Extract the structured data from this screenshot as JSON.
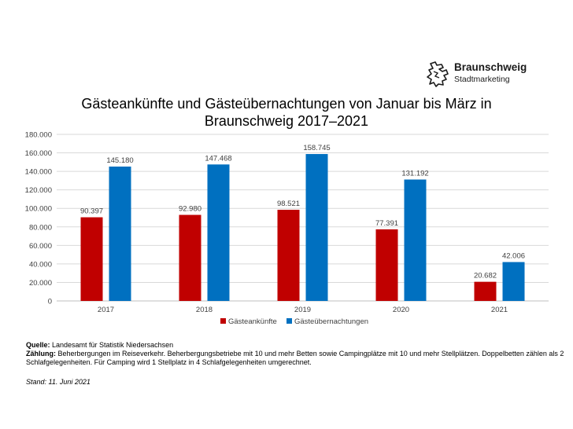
{
  "brand": {
    "name": "Braunschweig",
    "sub": "Stadtmarketing"
  },
  "colors": {
    "series1": "#c00000",
    "series2": "#0070c0",
    "grid": "#d9d9d9"
  },
  "chart_data": {
    "type": "bar",
    "title_line1": "Gästeankünfte und Gästeübernachtungen von Januar bis März in",
    "title_line2": "Braunschweig 2017–2021",
    "categories": [
      "2017",
      "2018",
      "2019",
      "2020",
      "2021"
    ],
    "series": [
      {
        "name": "Gästeankünfte",
        "values": [
          90397,
          92980,
          98521,
          77391,
          20682
        ],
        "labels": [
          "90.397",
          "92.980",
          "98.521",
          "77.391",
          "20.682"
        ]
      },
      {
        "name": "Gästeübernachtungen",
        "values": [
          145180,
          147468,
          158745,
          131192,
          42006
        ],
        "labels": [
          "145.180",
          "147.468",
          "158.745",
          "131.192",
          "42.006"
        ]
      }
    ],
    "ylim": [
      0,
      180000
    ],
    "yticks": [
      0,
      20000,
      40000,
      60000,
      80000,
      100000,
      120000,
      140000,
      160000,
      180000
    ],
    "ytick_labels": [
      "0",
      "20.000",
      "40.000",
      "60.000",
      "80.000",
      "100.000",
      "120.000",
      "140.000",
      "160.000",
      "180.000"
    ],
    "grid": true,
    "legend": "bottom"
  },
  "notes": {
    "source_label": "Quelle:",
    "source_text": " Landesamt für Statistik Niedersachsen",
    "count_label": "Zählung:",
    "count_text": " Beherbergungen im Reiseverkehr. Beherbergungsbetriebe mit 10 und mehr Betten sowie Campingplätze mit 10 und mehr Stellplätzen. Doppelbetten zählen als 2 Schlafgelegenheiten. Für Camping wird 1 Stellplatz in 4 Schlafgelegenheiten umgerechnet.",
    "stand": "Stand: 11. Juni 2021"
  }
}
